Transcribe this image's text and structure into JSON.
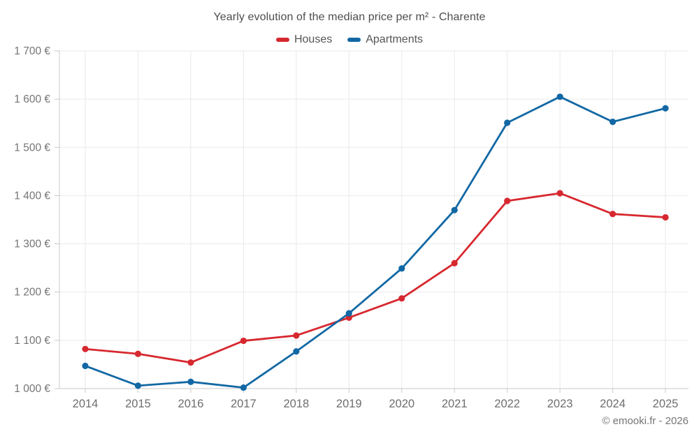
{
  "chart_data": {
    "type": "line",
    "title": "Yearly evolution of the median price per m² - Charente",
    "categories": [
      "2014",
      "2015",
      "2016",
      "2017",
      "2018",
      "2019",
      "2020",
      "2021",
      "2022",
      "2023",
      "2024",
      "2025"
    ],
    "series": [
      {
        "name": "Houses",
        "color": "#d7282f",
        "values": [
          1082,
          1072,
          1054,
          1099,
          1110,
          1147,
          1187,
          1260,
          1389,
          1405,
          1362,
          1355
        ]
      },
      {
        "name": "Apartments",
        "color": "#1268a4",
        "values": [
          1047,
          1006,
          1014,
          1002,
          1077,
          1156,
          1249,
          1370,
          1551,
          1605,
          1553,
          1581
        ]
      }
    ],
    "ylim": [
      1000,
      1700
    ],
    "y_tick_step": 100,
    "y_tick_labels": [
      "1 000 €",
      "1 100 €",
      "1 200 €",
      "1 300 €",
      "1 400 €",
      "1 500 €",
      "1 600 €",
      "1 700 €"
    ],
    "grid": true,
    "legend_position": "top",
    "attribution": "© emooki.fr - 2026",
    "colors": {
      "grid": "#e9e9e9",
      "axis": "#c9c9c9",
      "tick": "#c9c9c9",
      "y_label": "#757575",
      "x_label": "#6e6e6e"
    }
  }
}
